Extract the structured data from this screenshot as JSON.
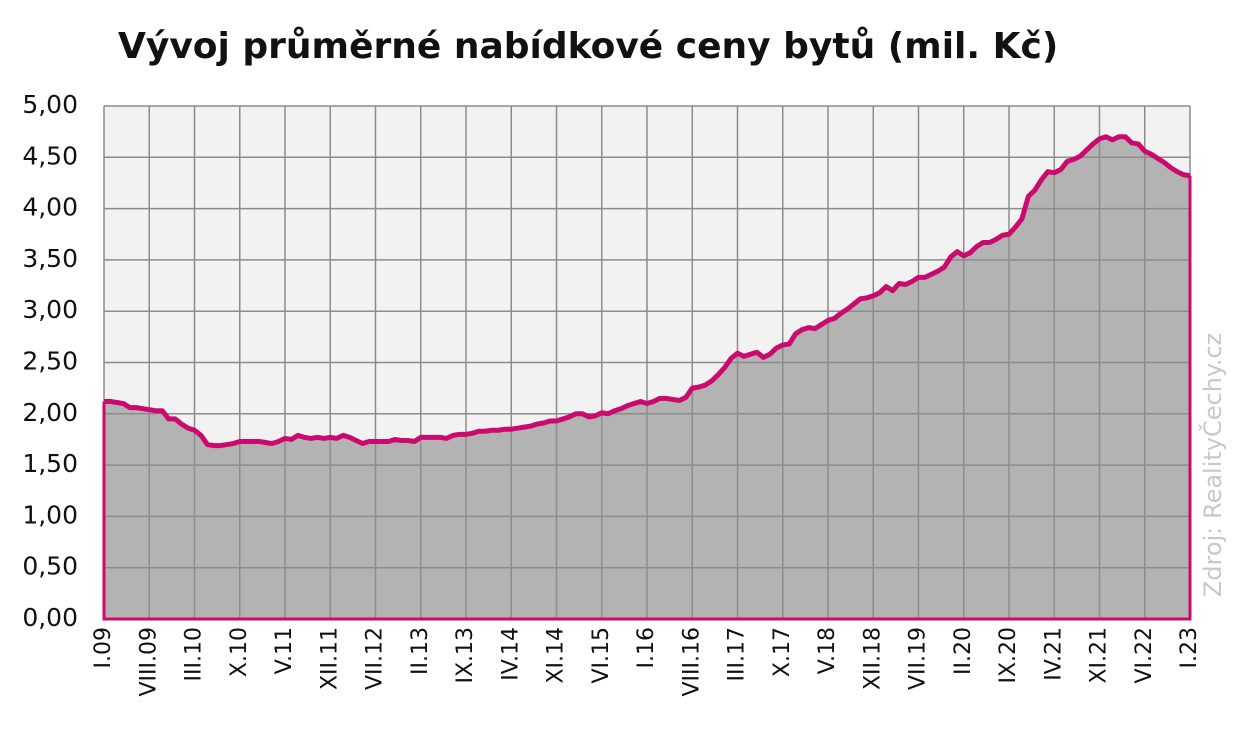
{
  "chart_data": {
    "type": "area",
    "title": "Vývoj průměrné nabídkové ceny bytů (mil. Kč)",
    "source": "Zdroj: RealityČechy.cz",
    "categories": [
      "I.09",
      null,
      null,
      null,
      null,
      null,
      null,
      "VIII.09",
      null,
      null,
      null,
      null,
      null,
      null,
      "III.10",
      null,
      null,
      null,
      null,
      null,
      null,
      "X.10",
      null,
      null,
      null,
      null,
      null,
      null,
      "V.11",
      null,
      null,
      null,
      null,
      null,
      null,
      "XII.11",
      null,
      null,
      null,
      null,
      null,
      null,
      "VII.12",
      null,
      null,
      null,
      null,
      null,
      null,
      "II.13",
      null,
      null,
      null,
      null,
      null,
      null,
      "IX.13",
      null,
      null,
      null,
      null,
      null,
      null,
      "IV.14",
      null,
      null,
      null,
      null,
      null,
      null,
      "XI.14",
      null,
      null,
      null,
      null,
      null,
      null,
      "VI.15",
      null,
      null,
      null,
      null,
      null,
      null,
      "I.16",
      null,
      null,
      null,
      null,
      null,
      null,
      "VIII.16",
      null,
      null,
      null,
      null,
      null,
      null,
      "III.17",
      null,
      null,
      null,
      null,
      null,
      null,
      "X.17",
      null,
      null,
      null,
      null,
      null,
      null,
      "V.18",
      null,
      null,
      null,
      null,
      null,
      null,
      "XII.18",
      null,
      null,
      null,
      null,
      null,
      null,
      "VII.19",
      null,
      null,
      null,
      null,
      null,
      null,
      "II.20",
      null,
      null,
      null,
      null,
      null,
      null,
      "IX.20",
      null,
      null,
      null,
      null,
      null,
      null,
      "IV.21",
      null,
      null,
      null,
      null,
      null,
      null,
      "XI.21",
      null,
      null,
      null,
      null,
      null,
      null,
      "VI.22",
      null,
      null,
      null,
      null,
      null,
      null,
      "I.23"
    ],
    "values": [
      2.12,
      2.12,
      2.11,
      2.1,
      2.06,
      2.06,
      2.05,
      2.04,
      2.03,
      2.03,
      1.95,
      1.95,
      1.9,
      1.86,
      1.84,
      1.79,
      1.7,
      1.69,
      1.69,
      1.7,
      1.71,
      1.73,
      1.73,
      1.73,
      1.73,
      1.72,
      1.71,
      1.73,
      1.76,
      1.75,
      1.79,
      1.77,
      1.76,
      1.77,
      1.76,
      1.77,
      1.76,
      1.79,
      1.77,
      1.74,
      1.71,
      1.73,
      1.73,
      1.73,
      1.73,
      1.75,
      1.74,
      1.74,
      1.73,
      1.77,
      1.77,
      1.77,
      1.77,
      1.76,
      1.79,
      1.8,
      1.8,
      1.81,
      1.83,
      1.83,
      1.84,
      1.84,
      1.85,
      1.85,
      1.86,
      1.87,
      1.88,
      1.9,
      1.91,
      1.93,
      1.93,
      1.95,
      1.97,
      2.0,
      2.0,
      1.97,
      1.98,
      2.01,
      2.0,
      2.03,
      2.05,
      2.08,
      2.1,
      2.12,
      2.1,
      2.12,
      2.15,
      2.15,
      2.14,
      2.13,
      2.16,
      2.25,
      2.26,
      2.28,
      2.32,
      2.38,
      2.45,
      2.54,
      2.59,
      2.56,
      2.58,
      2.6,
      2.55,
      2.58,
      2.64,
      2.67,
      2.68,
      2.78,
      2.82,
      2.84,
      2.83,
      2.87,
      2.91,
      2.93,
      2.98,
      3.02,
      3.07,
      3.12,
      3.13,
      3.15,
      3.18,
      3.24,
      3.2,
      3.27,
      3.26,
      3.29,
      3.33,
      3.33,
      3.36,
      3.39,
      3.43,
      3.53,
      3.58,
      3.54,
      3.57,
      3.63,
      3.67,
      3.67,
      3.7,
      3.74,
      3.75,
      3.82,
      3.9,
      4.12,
      4.18,
      4.28,
      4.36,
      4.35,
      4.38,
      4.46,
      4.48,
      4.51,
      4.57,
      4.63,
      4.68,
      4.7,
      4.67,
      4.7,
      4.7,
      4.64,
      4.63,
      4.56,
      4.53,
      4.49,
      4.45,
      4.4,
      4.36,
      4.33,
      4.32
    ],
    "line_color": "#cc0a6e",
    "fill_color": "#b3b3b3",
    "plot_background": "#f2f2f2",
    "ylim": [
      0,
      5
    ],
    "yticks": [
      {
        "value": 0,
        "label": "0,00"
      },
      {
        "value": 0.5,
        "label": "0,50"
      },
      {
        "value": 1,
        "label": "1,00"
      },
      {
        "value": 1.5,
        "label": "1,50"
      },
      {
        "value": 2,
        "label": "2,00"
      },
      {
        "value": 2.5,
        "label": "2,50"
      },
      {
        "value": 3,
        "label": "3,00"
      },
      {
        "value": 3.5,
        "label": "3,50"
      },
      {
        "value": 4,
        "label": "4,00"
      },
      {
        "value": 4.5,
        "label": "4,50"
      },
      {
        "value": 5,
        "label": "5,00"
      }
    ],
    "grid": true
  }
}
